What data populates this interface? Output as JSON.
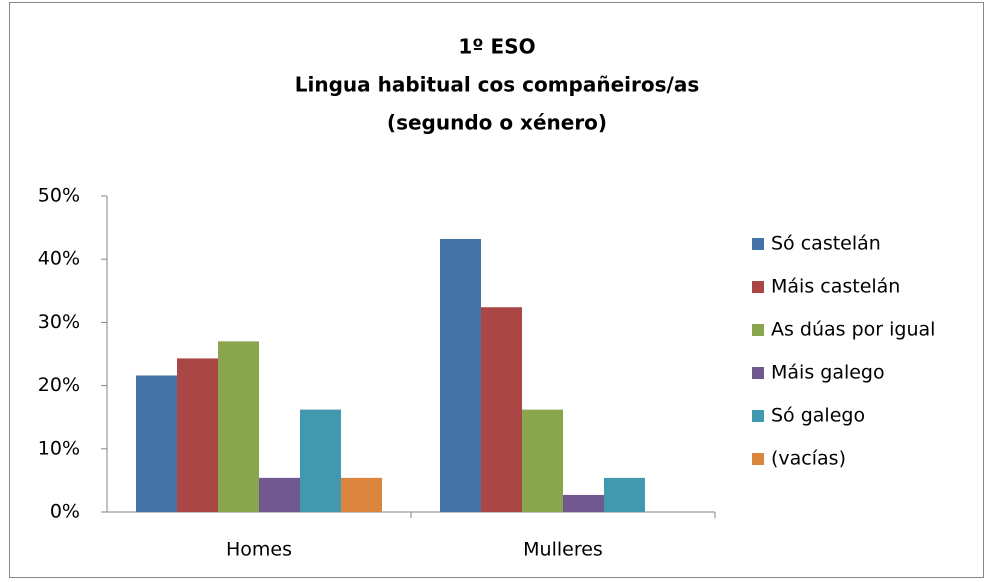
{
  "chart_data": {
    "type": "bar",
    "title": [
      "1º ESO",
      "Lingua habitual cos compañeiros/as",
      "(segundo o xénero)"
    ],
    "categories": [
      "Homes",
      "Mulleres"
    ],
    "series": [
      {
        "name": "Só castelán",
        "color": "#4572a7",
        "values": [
          21.6,
          43.2
        ]
      },
      {
        "name": "Máis castelán",
        "color": "#aa4643",
        "values": [
          24.3,
          32.4
        ]
      },
      {
        "name": "As dúas por igual",
        "color": "#89a54e",
        "values": [
          27.0,
          16.2
        ]
      },
      {
        "name": "Máis galego",
        "color": "#71588f",
        "values": [
          5.4,
          2.7
        ]
      },
      {
        "name": "Só galego",
        "color": "#4198af",
        "values": [
          16.2,
          5.4
        ]
      },
      {
        "name": "(vacías)",
        "color": "#db843d",
        "values": [
          5.4,
          null
        ]
      }
    ],
    "ylim": [
      0,
      50
    ],
    "yticks": [
      {
        "value": 0,
        "label": "0%"
      },
      {
        "value": 10,
        "label": "10%"
      },
      {
        "value": 20,
        "label": "20%"
      },
      {
        "value": 30,
        "label": "30%"
      },
      {
        "value": 40,
        "label": "40%"
      },
      {
        "value": 50,
        "label": "50%"
      }
    ],
    "grid": false,
    "legend": "right"
  }
}
